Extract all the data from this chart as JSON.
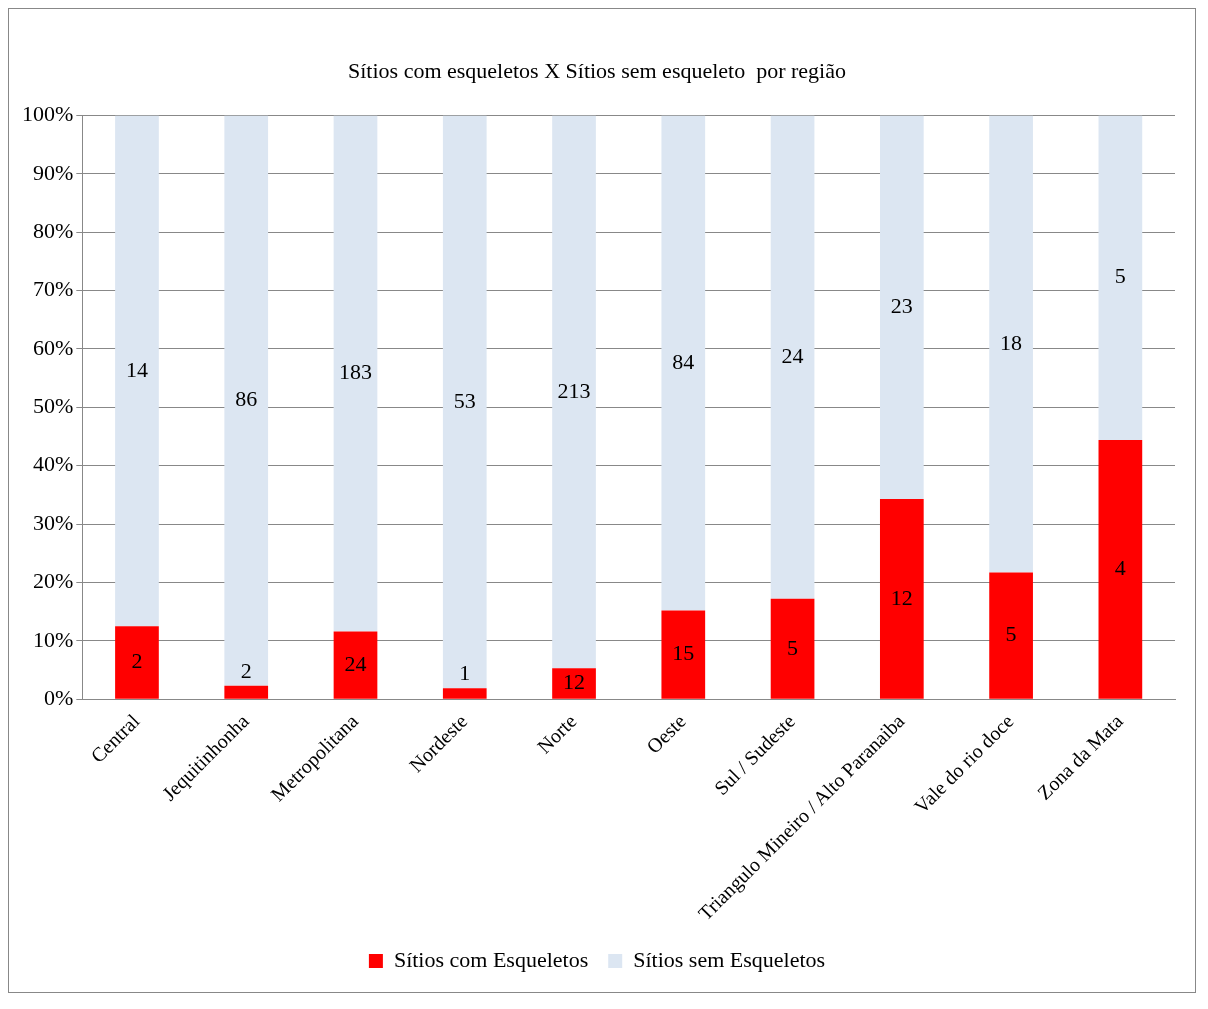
{
  "chart_data": {
    "type": "bar",
    "title": "Sítios com esqueletos X Sítios sem esqueleto  por região",
    "stacked": true,
    "categories": [
      "Central",
      "Jequitinhonha",
      "Metropolitana",
      "Nordeste",
      "Norte",
      "Oeste",
      "Sul / Sudeste",
      "Triangulo Mineiro / Alto Paranaiba",
      "Vale do rio doce",
      "Zona da Mata"
    ],
    "series": [
      {
        "name": "Sítios com Esqueletos",
        "color": "#ff0000",
        "values": [
          12.5,
          2.3,
          11.6,
          1.9,
          5.3,
          15.2,
          17.2,
          34.3,
          21.7,
          44.4
        ]
      },
      {
        "name": "Sítios sem Esqueletos",
        "color": "#dce6f2",
        "values": [
          87.5,
          97.7,
          88.4,
          98.1,
          94.7,
          84.8,
          82.8,
          65.7,
          78.3,
          55.6
        ]
      }
    ],
    "annotations": [
      "2",
      "2",
      "24",
      "1",
      "12",
      "15",
      "5",
      "12",
      "5",
      "4",
      "14",
      "86",
      "183",
      "53",
      "213",
      "84",
      "24",
      "23",
      "18",
      "5"
    ],
    "ylim": [
      0,
      100
    ],
    "yticks": [
      {
        "value": 0,
        "label": "0%"
      },
      {
        "value": 10,
        "label": "10%"
      },
      {
        "value": 20,
        "label": "20%"
      },
      {
        "value": 30,
        "label": "30%"
      },
      {
        "value": 40,
        "label": "40%"
      },
      {
        "value": 50,
        "label": "50%"
      },
      {
        "value": 60,
        "label": "60%"
      },
      {
        "value": 70,
        "label": "70%"
      },
      {
        "value": 80,
        "label": "80%"
      },
      {
        "value": 90,
        "label": "90%"
      },
      {
        "value": 100,
        "label": "100%"
      }
    ],
    "grid": "y",
    "legend": "bottom"
  }
}
